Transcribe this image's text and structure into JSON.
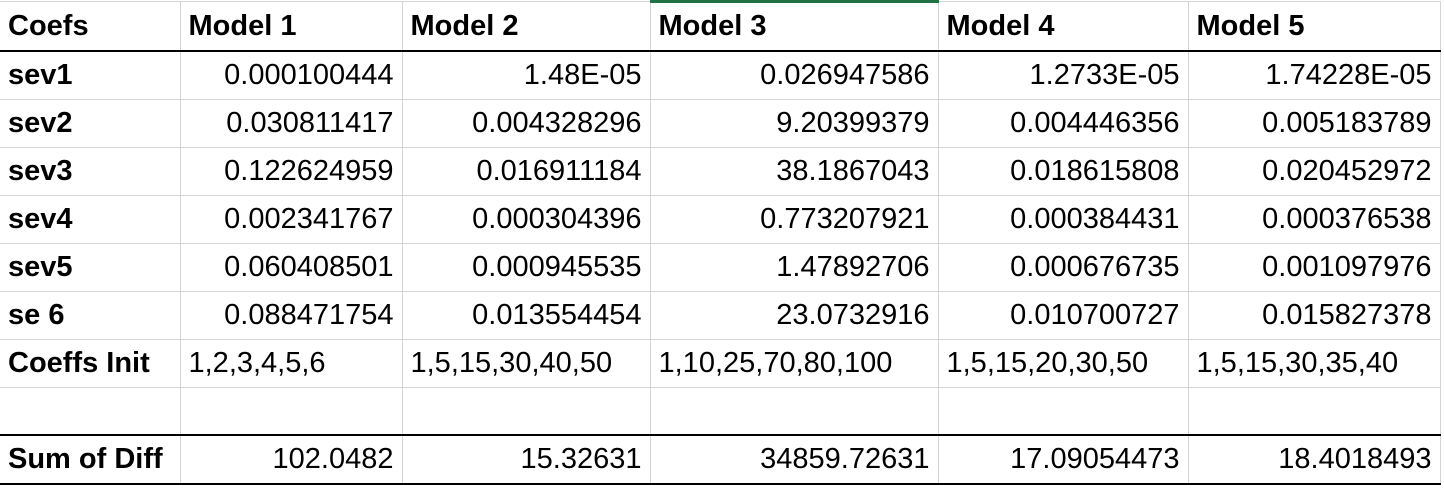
{
  "header": [
    "Coefs",
    "Model 1",
    "Model 2",
    "Model 3",
    "Model 4",
    "Model 5"
  ],
  "rows": [
    {
      "label": "sev1",
      "values": [
        "0.000100444",
        "1.48E-05",
        "0.026947586",
        "1.2733E-05",
        "1.74228E-05"
      ]
    },
    {
      "label": "sev2",
      "values": [
        "0.030811417",
        "0.004328296",
        "9.20399379",
        "0.004446356",
        "0.005183789"
      ]
    },
    {
      "label": "sev3",
      "values": [
        "0.122624959",
        "0.016911184",
        "38.1867043",
        "0.018615808",
        "0.020452972"
      ]
    },
    {
      "label": "sev4",
      "values": [
        "0.002341767",
        "0.000304396",
        "0.773207921",
        "0.000384431",
        "0.000376538"
      ]
    },
    {
      "label": "sev5",
      "values": [
        "0.060408501",
        "0.000945535",
        "1.47892706",
        "0.000676735",
        "0.001097976"
      ]
    },
    {
      "label": "se 6",
      "values": [
        "0.088471754",
        "0.013554454",
        "23.0732916",
        "0.010700727",
        "0.015827378"
      ]
    }
  ],
  "init": {
    "label": "Coeffs Init",
    "values": [
      "1,2,3,4,5,6",
      "1,5,15,30,40,50",
      "1,10,25,70,80,100",
      "1,5,15,20,30,50",
      "1,5,15,30,35,40"
    ]
  },
  "sum": {
    "label": "Sum of Diff",
    "values": [
      "102.0482",
      "15.32631",
      "34859.72631",
      "17.09054473",
      "18.4018493"
    ]
  },
  "colors": {
    "grid": "#d4d4d4",
    "border": "#000000",
    "selected_column_accent": "#217346"
  }
}
